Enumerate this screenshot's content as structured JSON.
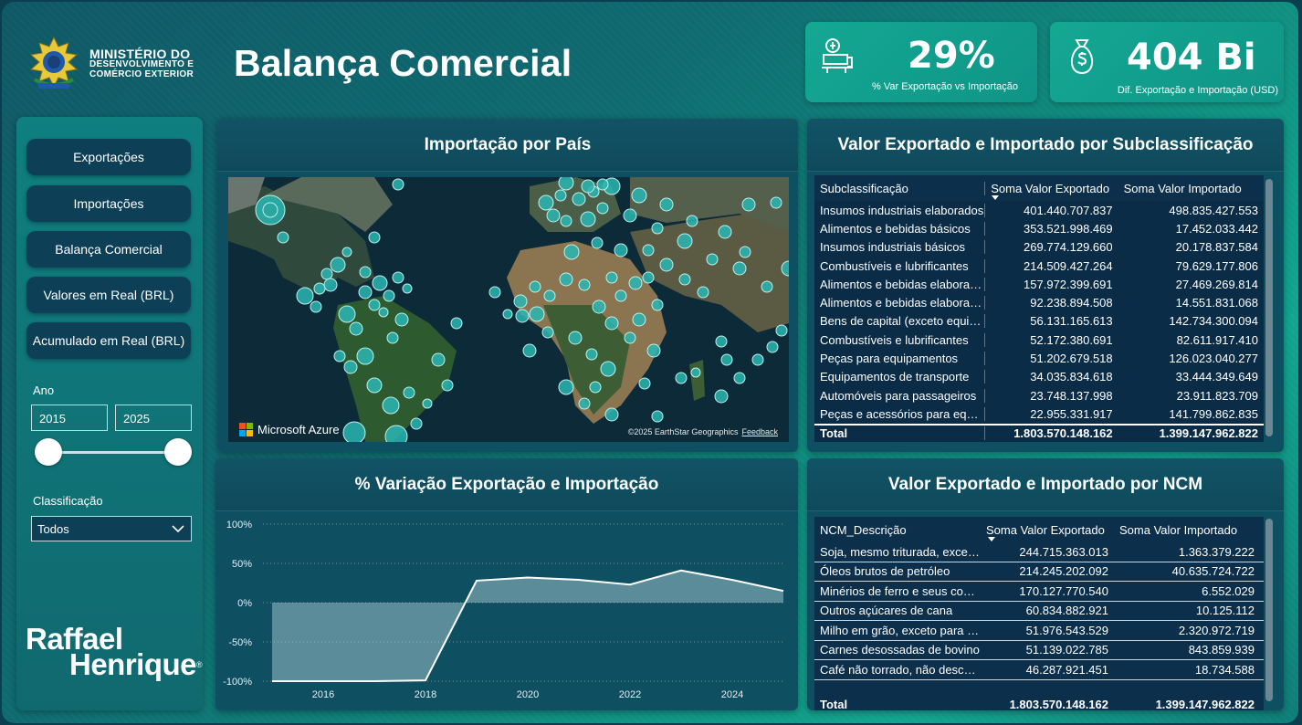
{
  "header": {
    "ministry": [
      "MINISTÉRIO DO",
      "DESENVOLVIMENTO E",
      "COMÉRCIO EXTERIOR"
    ],
    "title": "Balança Comercial"
  },
  "kpis": [
    {
      "value": "29%",
      "label": "% Var Exportação vs Importação",
      "icon": "scale-icon"
    },
    {
      "value": "404 Bi",
      "label": "Dif. Exportação e Importação (USD)",
      "icon": "money-bag-icon"
    }
  ],
  "sidebar": {
    "buttons": [
      "Exportações",
      "Importações",
      "Balança Comercial",
      "Valores em Real (BRL)",
      "Acumulado em Real (BRL)"
    ],
    "year_label": "Ano",
    "year_from": "2015",
    "year_to": "2025",
    "class_label": "Classificação",
    "class_value": "Todos",
    "brand": [
      "Raffael",
      "Henrique",
      "®"
    ]
  },
  "map": {
    "title": "Importação por País",
    "provider": "Microsoft Azure",
    "credit": "©2025 EarthStar Geographics",
    "feedback": "Feedback"
  },
  "subclass_table": {
    "title": "Valor Exportado e Importado por Subclassificação",
    "headers": [
      "Subclassificação",
      "Soma Valor Exportado",
      "Soma Valor Importado"
    ],
    "rows": [
      [
        "Insumos industriais elaborados",
        "401.440.707.837",
        "498.835.427.553"
      ],
      [
        "Alimentos e bebidas básicos",
        "353.521.998.469",
        "17.452.033.442"
      ],
      [
        "Insumos industriais básicos",
        "269.774.129.660",
        "20.178.837.584"
      ],
      [
        "Combustíveis e lubrificantes",
        "214.509.427.264",
        "79.629.177.806"
      ],
      [
        "Alimentos e bebidas elaborados",
        "157.972.399.691",
        "27.469.269.814"
      ],
      [
        "Alimentos e bebidas elaborados",
        "92.238.894.508",
        "14.551.831.068"
      ],
      [
        "Bens de capital (exceto equipamentos)",
        "56.131.165.613",
        "142.734.300.094"
      ],
      [
        "Combustíveis e lubrificantes",
        "52.172.380.691",
        "82.611.917.410"
      ],
      [
        "Peças para equipamentos",
        "51.202.679.518",
        "126.023.040.277"
      ],
      [
        "Equipamentos de transporte",
        "34.035.834.618",
        "33.444.349.649"
      ],
      [
        "Automóveis para passageiros",
        "23.748.137.998",
        "23.911.823.709"
      ],
      [
        "Peças e acessórios para equipamentos",
        "22.955.331.917",
        "141.799.862.835"
      ]
    ],
    "total": [
      "Total",
      "1.803.570.148.162",
      "1.399.147.962.822"
    ]
  },
  "variation_chart": {
    "title": "% Variação Exportação e Importação"
  },
  "ncm_table": {
    "title": "Valor Exportado e Importado por NCM",
    "headers": [
      "NCM_Descrição",
      "Soma Valor Exportado",
      "Soma Valor Importado"
    ],
    "rows": [
      [
        "Soja, mesmo triturada, exceto para semeadura",
        "244.715.363.013",
        "1.363.379.222"
      ],
      [
        "Óleos brutos de petróleo",
        "214.245.202.092",
        "40.635.724.722"
      ],
      [
        "Minérios de ferro e seus concentrados",
        "170.127.770.540",
        "6.552.029"
      ],
      [
        "Outros açúcares de cana",
        "60.834.882.921",
        "10.125.112"
      ],
      [
        "Milho em grão, exceto para semeadura",
        "51.976.543.529",
        "2.320.972.719"
      ],
      [
        "Carnes desossadas de bovino",
        "51.139.022.785",
        "843.859.939"
      ],
      [
        "Café não torrado, não descafeinado",
        "46.287.921.451",
        "18.734.588"
      ]
    ],
    "total": [
      "Total",
      "1.803.570.148.162",
      "1.399.147.962.822"
    ]
  },
  "chart_data": {
    "type": "area",
    "x": [
      2015,
      2016,
      2017,
      2018,
      2019,
      2020,
      2021,
      2022,
      2023,
      2024,
      2025
    ],
    "series": [
      {
        "values": [
          -100,
          -100,
          -100,
          -99,
          28,
          32,
          29,
          23,
          41,
          29,
          15
        ]
      }
    ],
    "xticks": [
      2016,
      2018,
      2020,
      2022,
      2024
    ],
    "yticks": [
      "100%",
      "50%",
      "0%",
      "-50%",
      "-100%"
    ],
    "ylim": [
      -100,
      100
    ],
    "grid": true
  },
  "colors": {
    "panel": "#0f4f62",
    "accent": "#14a893",
    "bubble": "#2ab6b3"
  }
}
